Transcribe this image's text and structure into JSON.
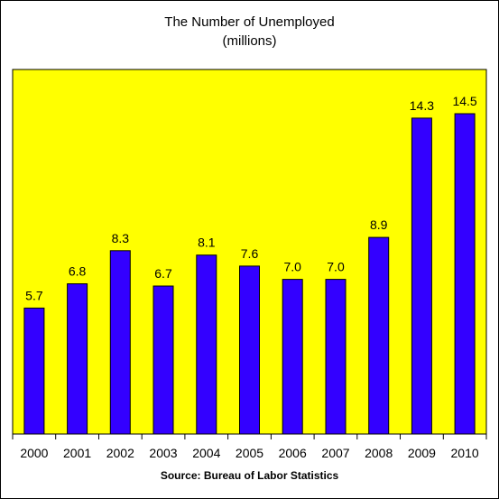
{
  "chart_data": {
    "type": "bar",
    "title_lines": [
      "The Number of Unemployed",
      "(millions)"
    ],
    "source": "Source: Bureau of Labor Statistics",
    "categories": [
      "2000",
      "2001",
      "2002",
      "2003",
      "2004",
      "2005",
      "2006",
      "2007",
      "2008",
      "2009",
      "2010"
    ],
    "values": [
      5.7,
      6.8,
      8.3,
      6.7,
      8.1,
      7.6,
      7.0,
      7.0,
      8.9,
      14.3,
      14.5
    ],
    "value_labels": [
      "5.7",
      "6.8",
      "8.3",
      "6.7",
      "8.1",
      "7.6",
      "7.0",
      "7.0",
      "8.9",
      "14.3",
      "14.5"
    ],
    "ylim": [
      0,
      16.5
    ],
    "grid": false,
    "legend": "none",
    "colors": {
      "plot_background": "#ffff00",
      "bar": "#3300ff",
      "bar_outline": "#000000"
    }
  }
}
